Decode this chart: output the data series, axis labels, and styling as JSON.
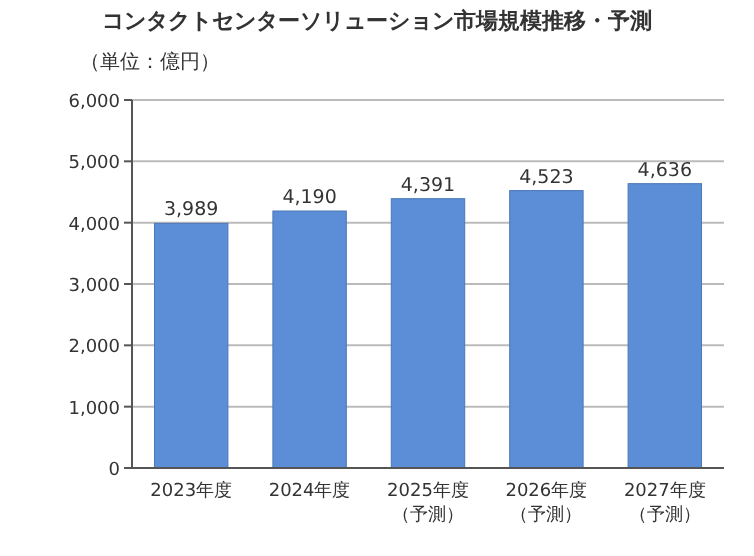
{
  "chart_data": {
    "type": "bar",
    "title": "コンタクトセンターソリューション市場規模推移・予測",
    "ylabel": "（単位：億円）",
    "categories": [
      "2023年度",
      "2024年度",
      "2025年度（予測）",
      "2026年度（予測）",
      "2027年度（予測）"
    ],
    "values": [
      3989,
      4190,
      4391,
      4523,
      4636
    ],
    "value_labels": [
      "3,989",
      "4,190",
      "4,391",
      "4,523",
      "4,636"
    ],
    "color": "#5b8ed6",
    "ylim": [
      0,
      6000
    ],
    "yticks": [
      {
        "value": 0,
        "label": "0"
      },
      {
        "value": 1000,
        "label": "1,000"
      },
      {
        "value": 2000,
        "label": "2,000"
      },
      {
        "value": 3000,
        "label": "3,000"
      },
      {
        "value": 4000,
        "label": "4,000"
      },
      {
        "value": 5000,
        "label": "5,000"
      },
      {
        "value": 6000,
        "label": "6,000"
      }
    ],
    "grid": "y"
  }
}
